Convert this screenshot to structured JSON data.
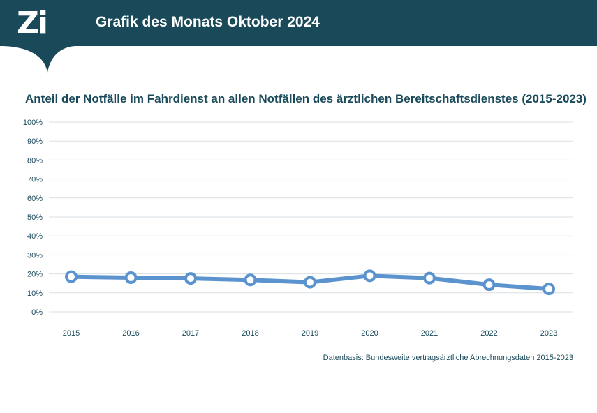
{
  "header": {
    "logo": "Zi",
    "title": "Grafik des Monats Oktober 2024"
  },
  "colors": {
    "header_bg": "#1a4a5a",
    "line": "#5b93cf",
    "grid": "#d9dfe3",
    "text": "#1a4a5a"
  },
  "chart_data": {
    "type": "line",
    "title": "Anteil der Notfälle im Fahrdienst an allen Notfällen des ärztlichen Bereitschaftsdienstes (2015-2023)",
    "x": [
      "2015",
      "2016",
      "2017",
      "2018",
      "2019",
      "2020",
      "2021",
      "2022",
      "2023"
    ],
    "series": [
      {
        "values": [
          18.5,
          18.0,
          17.6,
          16.8,
          15.6,
          19.0,
          17.8,
          14.3,
          12.1
        ]
      }
    ],
    "ylim": [
      0,
      100
    ],
    "yticks": [
      "0%",
      "10%",
      "20%",
      "30%",
      "40%",
      "50%",
      "60%",
      "70%",
      "80%",
      "90%",
      "100%"
    ],
    "grid": true,
    "xlabel": "",
    "ylabel": ""
  },
  "footnote": "Datenbasis: Bundesweite vertragsärztliche Abrechnungsdaten 2015-2023"
}
